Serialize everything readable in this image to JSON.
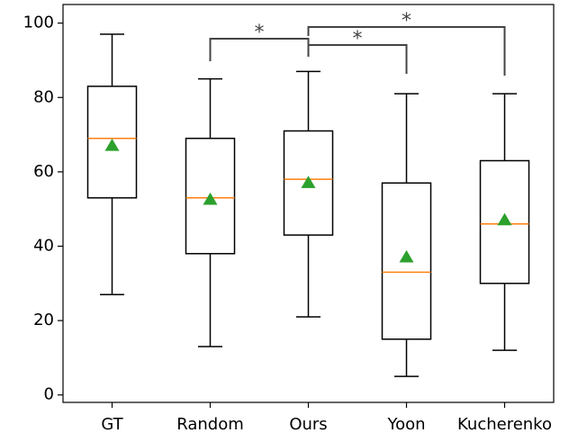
{
  "chart_data": {
    "type": "box",
    "categories": [
      "GT",
      "Random",
      "Ours",
      "Yoon",
      "Kucherenko"
    ],
    "boxes": [
      {
        "low": 27,
        "q1": 53,
        "median": 69,
        "q3": 83,
        "high": 97,
        "mean": 67
      },
      {
        "low": 13,
        "q1": 38,
        "median": 53,
        "q3": 69,
        "high": 85,
        "mean": 52.5
      },
      {
        "low": 21,
        "q1": 43,
        "median": 58,
        "q3": 71,
        "high": 87,
        "mean": 57
      },
      {
        "low": 5,
        "q1": 15,
        "median": 33,
        "q3": 57,
        "high": 81,
        "mean": 37
      },
      {
        "low": 12,
        "q1": 30,
        "median": 46,
        "q3": 63,
        "high": 81,
        "mean": 47
      }
    ],
    "box_color": "#000000",
    "median_color": "#ff7f0e",
    "mean_color": "#2ca02c",
    "bracket_color": "#444444",
    "significance": [
      {
        "pair": [
          1,
          2
        ],
        "label": "*"
      },
      {
        "pair": [
          2,
          3
        ],
        "label": "*"
      },
      {
        "pair": [
          2,
          4
        ],
        "label": "*"
      }
    ],
    "ylim": [
      -2,
      105
    ],
    "yticks": [
      0,
      20,
      40,
      60,
      80,
      100
    ]
  }
}
